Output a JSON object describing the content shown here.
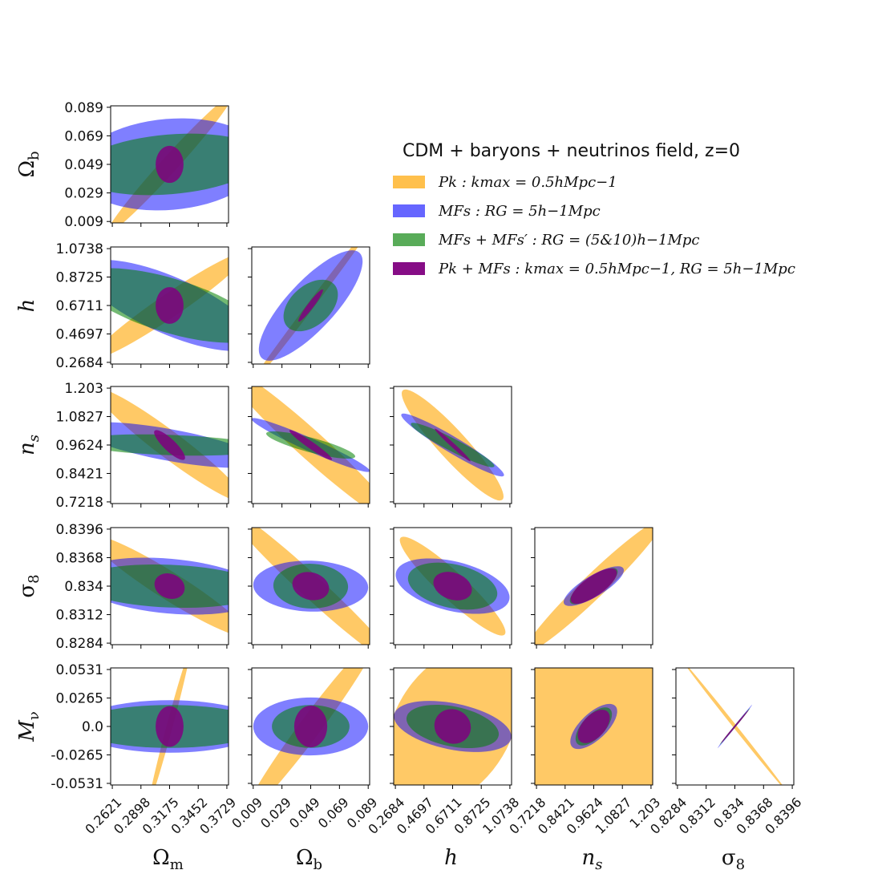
{
  "chart_data": {
    "type": "corner-plot",
    "title": "CDM + baryons + neutrinos field, z=0",
    "parameters": [
      {
        "key": "Om",
        "label": "Ωm",
        "fiducial": 0.3175,
        "range": [
          0.2605,
          0.3745
        ],
        "ticks": [
          "0.2621",
          "0.2898",
          "0.3175",
          "0.3452",
          "0.3729"
        ],
        "tick_values": [
          0.2621,
          0.2898,
          0.3175,
          0.3452,
          0.3729
        ]
      },
      {
        "key": "Ob",
        "label": "Ωb",
        "fiducial": 0.049,
        "range": [
          0.008,
          0.09
        ],
        "ticks": [
          "0.009",
          "0.029",
          "0.049",
          "0.069",
          "0.089"
        ],
        "tick_values": [
          0.009,
          0.029,
          0.049,
          0.069,
          0.089
        ]
      },
      {
        "key": "h",
        "label": "h",
        "fiducial": 0.6711,
        "range": [
          0.2566,
          1.0856
        ],
        "ticks": [
          "0.2684",
          "0.4697",
          "0.6711",
          "0.8725",
          "1.0738"
        ],
        "tick_values": [
          0.2684,
          0.4697,
          0.6711,
          0.8725,
          1.0738
        ]
      },
      {
        "key": "ns",
        "label": "ns",
        "fiducial": 0.9624,
        "range": [
          0.7148,
          1.21
        ],
        "ticks": [
          "0.7218",
          "0.8421",
          "0.9624",
          "1.0827",
          "1.203"
        ],
        "tick_values": [
          0.7218,
          0.8421,
          0.9624,
          1.0827,
          1.203
        ]
      },
      {
        "key": "s8",
        "label": "σ8",
        "fiducial": 0.834,
        "range": [
          0.82825,
          0.83975
        ],
        "ticks": [
          "0.8284",
          "0.8312",
          "0.834",
          "0.8368",
          "0.8396"
        ],
        "tick_values": [
          0.8284,
          0.8312,
          0.834,
          0.8368,
          0.8396
        ]
      },
      {
        "key": "Mnu",
        "label": "Mν",
        "fiducial": 0.0,
        "range": [
          -0.0546,
          0.0546
        ],
        "ticks": [
          "-0.0531",
          "-0.0265",
          "0.0",
          "0.0265",
          "0.0531"
        ],
        "tick_values": [
          -0.0531,
          -0.0265,
          0.0,
          0.0265,
          0.0531
        ]
      }
    ],
    "series": [
      {
        "name": "Pk : k_max = 0.5hMpc^-1",
        "label": "Pk : kmax = 0.5hMpc−1",
        "color": "#FFA500",
        "opacity": 0.6
      },
      {
        "name": "MFs : R_G = 5h^-1Mpc",
        "label": "MFs : RG = 5h−1Mpc",
        "color": "#0000FF",
        "opacity": 0.5
      },
      {
        "name": "MFs + MFs' : R_G = (5&10)h^-1Mpc",
        "label": "MFs + MFs′ : RG = (5&10)h−1Mpc",
        "color": "#008000",
        "opacity": 0.55
      },
      {
        "name": "Pk + MFs : k_max = 0.5hMpc^-1, R_G = 5h^-1Mpc",
        "label": "Pk + MFs : kmax = 0.5hMpc−1, RG = 5h−1Mpc",
        "color": "#800080",
        "opacity": 0.85
      }
    ],
    "ellipses": {
      "Om|Ob": [
        {
          "s": 0,
          "cx": 0.3175,
          "cy": 0.049,
          "a": 0.09,
          "b": 0.0085,
          "slope": 0.8
        },
        {
          "s": 1,
          "cx": 0.3175,
          "cy": 0.049,
          "a": 0.09,
          "b": 0.032,
          "slope": 0.06
        },
        {
          "s": 2,
          "cx": 0.3175,
          "cy": 0.049,
          "a": 0.09,
          "b": 0.021,
          "slope": 0.06
        },
        {
          "s": 3,
          "cx": 0.3175,
          "cy": 0.049,
          "a": 0.0135,
          "b": 0.013,
          "slope": 0
        }
      ],
      "Om|h": [
        {
          "s": 0,
          "cx": 0.3175,
          "cy": 0.6711,
          "a": 0.09,
          "b": 0.1,
          "slope": 5.0
        },
        {
          "s": 1,
          "cx": 0.3175,
          "cy": 0.6711,
          "a": 0.09,
          "b": 0.22,
          "slope": -3.2
        },
        {
          "s": 2,
          "cx": 0.3175,
          "cy": 0.6711,
          "a": 0.09,
          "b": 0.2,
          "slope": -2.2
        },
        {
          "s": 3,
          "cx": 0.3175,
          "cy": 0.6711,
          "a": 0.0135,
          "b": 0.13,
          "slope": 0
        }
      ],
      "Ob|h": [
        {
          "s": 0,
          "cx": 0.049,
          "cy": 0.6711,
          "a": 0.075,
          "b": 0.042,
          "slope": 13.5
        },
        {
          "s": 1,
          "cx": 0.049,
          "cy": 0.6711,
          "a": 0.05,
          "b": 0.25,
          "slope": 11.0
        },
        {
          "s": 2,
          "cx": 0.049,
          "cy": 0.6711,
          "a": 0.022,
          "b": 0.19,
          "slope": 9.0
        },
        {
          "s": 3,
          "cx": 0.049,
          "cy": 0.6711,
          "a": 0.014,
          "b": 0.036,
          "slope": 13.5
        }
      ],
      "Om|ns": [
        {
          "s": 0,
          "cx": 0.3175,
          "cy": 0.9624,
          "a": 0.09,
          "b": 0.07,
          "slope": -3.3
        },
        {
          "s": 1,
          "cx": 0.3175,
          "cy": 0.9624,
          "a": 0.09,
          "b": 0.068,
          "slope": -0.8
        },
        {
          "s": 2,
          "cx": 0.3175,
          "cy": 0.9624,
          "a": 0.09,
          "b": 0.043,
          "slope": -0.15
        },
        {
          "s": 3,
          "cx": 0.3175,
          "cy": 0.9624,
          "a": 0.02,
          "b": 0.035,
          "slope": -4.2
        }
      ],
      "Ob|ns": [
        {
          "s": 0,
          "cx": 0.049,
          "cy": 0.9624,
          "a": 0.08,
          "b": 0.08,
          "slope": -5.5
        },
        {
          "s": 1,
          "cx": 0.049,
          "cy": 0.9624,
          "a": 0.045,
          "b": 0.03,
          "slope": -2.7
        },
        {
          "s": 2,
          "cx": 0.049,
          "cy": 0.9624,
          "a": 0.032,
          "b": 0.032,
          "slope": -1.6
        },
        {
          "s": 3,
          "cx": 0.049,
          "cy": 0.9624,
          "a": 0.018,
          "b": 0.018,
          "slope": -4.2
        }
      ],
      "h|ns": [
        {
          "s": 0,
          "cx": 0.6711,
          "cy": 0.9624,
          "a": 0.52,
          "b": 0.09,
          "slope": -0.66
        },
        {
          "s": 1,
          "cx": 0.6711,
          "cy": 0.9624,
          "a": 0.42,
          "b": 0.04,
          "slope": -0.36
        },
        {
          "s": 2,
          "cx": 0.6711,
          "cy": 0.9624,
          "a": 0.33,
          "b": 0.03,
          "slope": -0.31
        },
        {
          "s": 3,
          "cx": 0.6711,
          "cy": 0.9624,
          "a": 0.17,
          "b": 0.012,
          "slope": -0.55
        }
      ],
      "Om|s8": [
        {
          "s": 0,
          "cx": 0.3175,
          "cy": 0.834,
          "a": 0.09,
          "b": 0.0016,
          "slope": -0.064
        },
        {
          "s": 1,
          "cx": 0.3175,
          "cy": 0.834,
          "a": 0.09,
          "b": 0.0027,
          "slope": -0.009
        },
        {
          "s": 2,
          "cx": 0.3175,
          "cy": 0.834,
          "a": 0.09,
          "b": 0.0021,
          "slope": -0.004
        },
        {
          "s": 3,
          "cx": 0.3175,
          "cy": 0.834,
          "a": 0.015,
          "b": 0.0013,
          "slope": -0.04
        }
      ],
      "Ob|s8": [
        {
          "s": 0,
          "cx": 0.049,
          "cy": 0.834,
          "a": 0.08,
          "b": 0.0015,
          "slope": -0.13
        },
        {
          "s": 1,
          "cx": 0.049,
          "cy": 0.834,
          "a": 0.04,
          "b": 0.0025,
          "slope": -0.004
        },
        {
          "s": 2,
          "cx": 0.049,
          "cy": 0.834,
          "a": 0.026,
          "b": 0.0022,
          "slope": -0.004
        },
        {
          "s": 3,
          "cx": 0.049,
          "cy": 0.834,
          "a": 0.013,
          "b": 0.0014,
          "slope": -0.04
        }
      ],
      "h|s8": [
        {
          "s": 0,
          "cx": 0.6711,
          "cy": 0.834,
          "a": 0.5,
          "b": 0.0018,
          "slope": -0.013
        },
        {
          "s": 1,
          "cx": 0.6711,
          "cy": 0.834,
          "a": 0.41,
          "b": 0.0025,
          "slope": -0.0034
        },
        {
          "s": 2,
          "cx": 0.6711,
          "cy": 0.834,
          "a": 0.32,
          "b": 0.0022,
          "slope": -0.0031
        },
        {
          "s": 3,
          "cx": 0.6711,
          "cy": 0.834,
          "a": 0.14,
          "b": 0.0014,
          "slope": -0.005
        }
      ],
      "ns|s8": [
        {
          "s": 0,
          "cx": 0.9624,
          "cy": 0.834,
          "a": 0.4,
          "b": 0.0016,
          "slope": 0.0225
        },
        {
          "s": 1,
          "cx": 0.9624,
          "cy": 0.834,
          "a": 0.145,
          "b": 0.0012,
          "slope": 0.014
        },
        {
          "s": 2,
          "cx": 0.9624,
          "cy": 0.834,
          "a": 0.12,
          "b": 0.0011,
          "slope": 0.0165
        },
        {
          "s": 3,
          "cx": 0.9624,
          "cy": 0.834,
          "a": 0.115,
          "b": 0.0012,
          "slope": 0.0165
        }
      ],
      "Om|Mnu": [
        {
          "s": 0,
          "cx": 0.3175,
          "cy": 0.0,
          "a": 0.075,
          "b": 0.011,
          "slope": 3.6
        },
        {
          "s": 1,
          "cx": 0.3175,
          "cy": 0.0,
          "a": 0.09,
          "b": 0.0245,
          "slope": 0.0
        },
        {
          "s": 2,
          "cx": 0.3175,
          "cy": 0.0,
          "a": 0.09,
          "b": 0.02,
          "slope": 0.0
        },
        {
          "s": 3,
          "cx": 0.3175,
          "cy": 0.0,
          "a": 0.0135,
          "b": 0.019,
          "slope": 0
        }
      ],
      "Ob|Mnu": [
        {
          "s": 0,
          "cx": 0.049,
          "cy": 0.0,
          "a": 0.075,
          "b": 0.0165,
          "slope": 1.8
        },
        {
          "s": 1,
          "cx": 0.049,
          "cy": 0.0,
          "a": 0.04,
          "b": 0.027,
          "slope": 0.0
        },
        {
          "s": 2,
          "cx": 0.049,
          "cy": 0.0,
          "a": 0.027,
          "b": 0.02,
          "slope": 0.0
        },
        {
          "s": 3,
          "cx": 0.049,
          "cy": 0.0,
          "a": 0.0115,
          "b": 0.0195,
          "slope": 0
        }
      ],
      "h|Mnu": [
        {
          "s": 0,
          "cx": 0.6711,
          "cy": 0.0,
          "a": 0.6,
          "b": 0.105,
          "slope": 0.22
        },
        {
          "s": 1,
          "cx": 0.6711,
          "cy": 0.0,
          "a": 0.42,
          "b": 0.022,
          "slope": -0.027
        },
        {
          "s": 2,
          "cx": 0.6711,
          "cy": 0.0,
          "a": 0.33,
          "b": 0.019,
          "slope": -0.027
        },
        {
          "s": 3,
          "cx": 0.6711,
          "cy": 0.0,
          "a": 0.13,
          "b": 0.0175,
          "slope": -0.06
        }
      ],
      "ns|Mnu": [
        {
          "s": 0,
          "cx": 0.9624,
          "cy": 0.0,
          "a": 0.4,
          "b": 0.145,
          "slope": -0.27
        },
        {
          "s": 1,
          "cx": 0.9624,
          "cy": 0.0,
          "a": 0.125,
          "b": 0.017,
          "slope": 0.21
        },
        {
          "s": 2,
          "cx": 0.9624,
          "cy": 0.0,
          "a": 0.1,
          "b": 0.0155,
          "slope": 0.24
        },
        {
          "s": 3,
          "cx": 0.9624,
          "cy": 0.0,
          "a": 0.085,
          "b": 0.0155,
          "slope": 0.24
        }
      ],
      "s8|Mnu": [
        {
          "s": 0,
          "cx": 0.834,
          "cy": 0.0,
          "a": 0.008,
          "b": 0.0026,
          "slope": -12.0
        },
        {
          "s": 1,
          "cx": 0.834,
          "cy": 0.0,
          "a": 0.0027,
          "b": 0.001,
          "slope": 12.0
        },
        {
          "s": 2,
          "cx": 0.834,
          "cy": 0.0,
          "a": 0.0023,
          "b": 0.00085,
          "slope": 11.5
        },
        {
          "s": 3,
          "cx": 0.834,
          "cy": 0.0,
          "a": 0.0021,
          "b": 0.0008,
          "slope": 11.5
        }
      ]
    }
  }
}
